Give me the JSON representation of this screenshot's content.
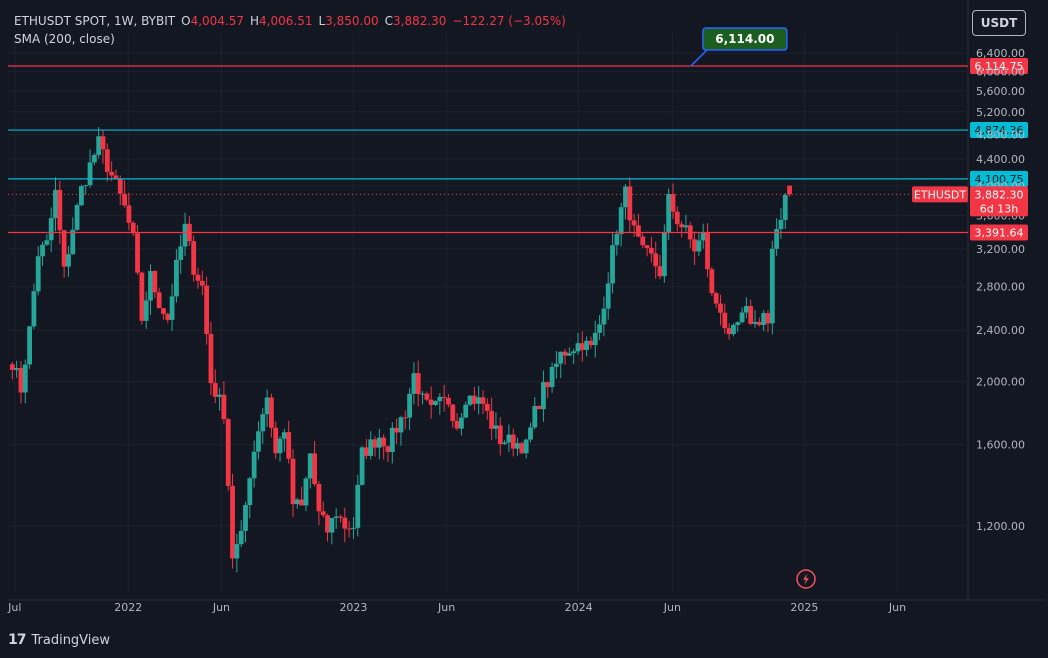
{
  "header": {
    "symbol": "ETHUSDT SPOT, 1W, BYBIT",
    "o_label": "O",
    "o_value": "4,004.57",
    "h_label": "H",
    "h_value": "4,006.51",
    "l_label": "L",
    "l_value": "3,850.00",
    "c_label": "C",
    "c_value": "3,882.30",
    "change": "−122.27 (−3.05%)",
    "indicator": "SMA (200, close)"
  },
  "currency_button": "USDT",
  "footer": {
    "logo": "17",
    "brand": "TradingView"
  },
  "colors": {
    "background": "#131722",
    "up": "#26a69a",
    "down": "#f23645",
    "cyan": "#00bcd4",
    "red_line": "#f23645",
    "annotation_bg": "#1b5e20",
    "annotation_border": "#2962ff"
  },
  "chart_data": {
    "type": "candlestick",
    "y_scale": "log",
    "ylim": [
      950,
      6800
    ],
    "y_ticks": [
      "6,400.00",
      "6,000.00",
      "5,600.00",
      "5,200.00",
      "4,800.00",
      "4,400.00",
      "4,000.00",
      "3,600.00",
      "3,200.00",
      "2,800.00",
      "2,400.00",
      "2,000.00",
      "1,600.00",
      "1,200.00"
    ],
    "y_tick_values": [
      6400,
      6000,
      5600,
      5200,
      4800,
      4400,
      4000,
      3600,
      3200,
      2800,
      2400,
      2000,
      1600,
      1200
    ],
    "x_ticks": [
      {
        "label": "Jul",
        "date": "2021-07-01"
      },
      {
        "label": "2022",
        "date": "2022-01-01"
      },
      {
        "label": "Jun",
        "date": "2022-06-01"
      },
      {
        "label": "2023",
        "date": "2023-01-01"
      },
      {
        "label": "Jun",
        "date": "2023-06-01"
      },
      {
        "label": "2024",
        "date": "2024-01-01"
      },
      {
        "label": "Jun",
        "date": "2024-06-01"
      },
      {
        "label": "2025",
        "date": "2025-01-01"
      },
      {
        "label": "Jun",
        "date": "2025-06-01"
      }
    ],
    "xlim": [
      "2021-06-20",
      "2025-09-20"
    ],
    "horizontal_lines": [
      {
        "value": 6114.75,
        "label": "6,114.75",
        "color": "#f23645"
      },
      {
        "value": 4874.36,
        "label": "4,874.36",
        "color": "#00bcd4"
      },
      {
        "value": 4100.75,
        "label": "4,100.75",
        "color": "#00bcd4"
      },
      {
        "value": 3391.64,
        "label": "3,391.64",
        "color": "#f23645"
      }
    ],
    "annotation": {
      "label": "6,114.00",
      "date": "2024-07-01",
      "value": 6114
    },
    "last_price": {
      "symbol": "ETHUSDT",
      "value": 3882.3,
      "label": "3,882.30",
      "countdown": "6d 13h"
    },
    "anchors": [
      [
        "2021-06-27",
        2150
      ],
      [
        "2021-07-11",
        1950
      ],
      [
        "2021-07-25",
        2400
      ],
      [
        "2021-08-08",
        3150
      ],
      [
        "2021-08-22",
        3250
      ],
      [
        "2021-09-05",
        3900
      ],
      [
        "2021-09-19",
        2950
      ],
      [
        "2021-10-03",
        3450
      ],
      [
        "2021-10-17",
        3950
      ],
      [
        "2021-10-31",
        4300
      ],
      [
        "2021-11-14",
        4650
      ],
      [
        "2021-11-28",
        4300
      ],
      [
        "2021-12-12",
        4000
      ],
      [
        "2021-12-26",
        3700
      ],
      [
        "2022-01-09",
        3300
      ],
      [
        "2022-01-23",
        2500
      ],
      [
        "2022-02-06",
        2900
      ],
      [
        "2022-02-20",
        2650
      ],
      [
        "2022-03-06",
        2500
      ],
      [
        "2022-03-20",
        3000
      ],
      [
        "2022-04-03",
        3450
      ],
      [
        "2022-04-17",
        3000
      ],
      [
        "2022-05-01",
        2800
      ],
      [
        "2022-05-15",
        2000
      ],
      [
        "2022-06-05",
        1800
      ],
      [
        "2022-06-19",
        1080
      ],
      [
        "2022-07-03",
        1150
      ],
      [
        "2022-07-17",
        1450
      ],
      [
        "2022-07-31",
        1700
      ],
      [
        "2022-08-14",
        1900
      ],
      [
        "2022-08-28",
        1550
      ],
      [
        "2022-09-11",
        1700
      ],
      [
        "2022-09-25",
        1300
      ],
      [
        "2022-10-09",
        1280
      ],
      [
        "2022-10-23",
        1550
      ],
      [
        "2022-11-06",
        1250
      ],
      [
        "2022-11-20",
        1180
      ],
      [
        "2022-12-04",
        1260
      ],
      [
        "2022-12-18",
        1200
      ],
      [
        "2023-01-01",
        1200
      ],
      [
        "2023-01-15",
        1550
      ],
      [
        "2023-01-29",
        1600
      ],
      [
        "2023-02-12",
        1650
      ],
      [
        "2023-02-26",
        1600
      ],
      [
        "2023-03-12",
        1700
      ],
      [
        "2023-03-26",
        1800
      ],
      [
        "2023-04-09",
        2050
      ],
      [
        "2023-04-23",
        1870
      ],
      [
        "2023-05-07",
        1800
      ],
      [
        "2023-05-21",
        1850
      ],
      [
        "2023-06-04",
        1870
      ],
      [
        "2023-06-18",
        1720
      ],
      [
        "2023-07-02",
        1900
      ],
      [
        "2023-07-16",
        1880
      ],
      [
        "2023-07-30",
        1850
      ],
      [
        "2023-08-13",
        1720
      ],
      [
        "2023-08-27",
        1630
      ],
      [
        "2023-09-10",
        1620
      ],
      [
        "2023-09-24",
        1610
      ],
      [
        "2023-10-08",
        1590
      ],
      [
        "2023-10-22",
        1790
      ],
      [
        "2023-11-05",
        1950
      ],
      [
        "2023-11-19",
        2050
      ],
      [
        "2023-12-03",
        2200
      ],
      [
        "2023-12-17",
        2250
      ],
      [
        "2024-01-07",
        2300
      ],
      [
        "2024-01-21",
        2250
      ],
      [
        "2024-02-04",
        2450
      ],
      [
        "2024-02-18",
        2900
      ],
      [
        "2024-03-03",
        3450
      ],
      [
        "2024-03-17",
        3900
      ],
      [
        "2024-03-31",
        3400
      ],
      [
        "2024-04-14",
        3150
      ],
      [
        "2024-04-28",
        3100
      ],
      [
        "2024-05-12",
        2950
      ],
      [
        "2024-05-26",
        3800
      ],
      [
        "2024-06-09",
        3550
      ],
      [
        "2024-06-23",
        3400
      ],
      [
        "2024-07-07",
        3200
      ],
      [
        "2024-07-21",
        3350
      ],
      [
        "2024-08-04",
        2700
      ],
      [
        "2024-08-18",
        2600
      ],
      [
        "2024-09-01",
        2300
      ],
      [
        "2024-09-15",
        2450
      ],
      [
        "2024-09-29",
        2550
      ],
      [
        "2024-10-13",
        2450
      ],
      [
        "2024-10-27",
        2550
      ],
      [
        "2024-11-03",
        2450
      ],
      [
        "2024-11-10",
        3150
      ],
      [
        "2024-11-24",
        3550
      ],
      [
        "2024-12-01",
        3950
      ],
      [
        "2024-12-08",
        3882.3
      ]
    ]
  }
}
